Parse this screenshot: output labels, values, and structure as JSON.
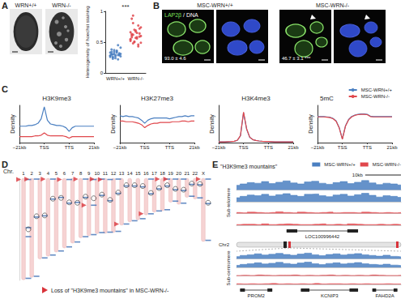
{
  "panel_labels": [
    "A",
    "B",
    "C",
    "D",
    "E"
  ],
  "panel_a": {
    "image_labels": [
      "WRN+/+",
      "WRN-/-"
    ]
  },
  "panel_b": {
    "groups": [
      "MSC-WRN+/+",
      "MSC-WRN-/-"
    ],
    "label_parts": [
      {
        "text": "LAP2β",
        "color": "#7be05a"
      },
      {
        "text": "/ DNA",
        "color": "#ffffff"
      }
    ],
    "values": [
      "93.0 ± 4.6",
      "46.7 ± 3.1 ***"
    ]
  },
  "panel_e": {
    "title": "\"H3K9me3 mountains\"",
    "chromosome": "Chr2"
  },
  "chart_data": [
    {
      "type": "scatter",
      "ylabel": "Heterogeneity of hoechst staining",
      "categories": [
        "WRN+/+",
        "WRN-/-"
      ],
      "values": [
        [
          0.28,
          0.31,
          0.25,
          0.34,
          0.29,
          0.36,
          0.22,
          0.3,
          0.27,
          0.33,
          0.38,
          0.26,
          0.31,
          0.24,
          0.35,
          0.29,
          0.32,
          0.41,
          0.28,
          0.3,
          0.23,
          0.37,
          0.27,
          0.33,
          0.45,
          0.29,
          0.31,
          0.26,
          0.34,
          0.3
        ],
        [
          0.52,
          0.61,
          0.48,
          0.7,
          0.57,
          0.65,
          0.43,
          0.59,
          0.74,
          0.55,
          0.63,
          0.81,
          0.5,
          0.67,
          0.58,
          0.46,
          0.72,
          0.6,
          0.54,
          0.88,
          0.62,
          0.51,
          0.69,
          0.56,
          0.77,
          0.64,
          0.49,
          0.66,
          0.58,
          0.93
        ]
      ],
      "colors": [
        "#4a7fc1",
        "#e0474c"
      ],
      "ylim": [
        0,
        1
      ],
      "yticks": [
        0,
        0.5,
        1
      ],
      "annotation": "***"
    },
    {
      "type": "line",
      "title": "H3K9me3",
      "ylabel": "Density",
      "x": [
        0,
        5,
        10,
        15,
        20,
        25,
        30,
        35,
        40,
        45,
        50,
        55,
        60,
        65,
        70,
        75,
        80,
        85,
        90,
        95,
        100,
        105,
        110,
        115,
        120
      ],
      "xlim": [
        0,
        120
      ],
      "xticks": [
        {
          "value": 0,
          "label": "−21kb"
        },
        {
          "value": 40,
          "label": "TSS"
        },
        {
          "value": 80,
          "label": "TTS"
        },
        {
          "value": 120,
          "label": "21kb"
        }
      ],
      "ylim": [
        0,
        0.5
      ],
      "tick_labels": "x",
      "series": [
        {
          "name": "MSC-WRN+/+",
          "color": "#4a7fc1",
          "values": [
            0.22,
            0.22,
            0.22,
            0.23,
            0.23,
            0.24,
            0.26,
            0.32,
            0.48,
            0.3,
            0.25,
            0.24,
            0.23,
            0.23,
            0.22,
            0.2,
            0.15,
            0.2,
            0.22,
            0.22,
            0.22,
            0.22,
            0.22,
            0.22,
            0.22
          ]
        },
        {
          "name": "MSC-WRN-/-",
          "color": "#e0474c",
          "values": [
            0.08,
            0.08,
            0.08,
            0.08,
            0.08,
            0.09,
            0.09,
            0.1,
            0.13,
            0.1,
            0.09,
            0.09,
            0.09,
            0.09,
            0.09,
            0.08,
            0.06,
            0.08,
            0.08,
            0.08,
            0.08,
            0.08,
            0.08,
            0.08,
            0.08
          ]
        }
      ]
    },
    {
      "type": "line",
      "title": "H3K27me3",
      "ylabel": "Density",
      "x": [
        0,
        5,
        10,
        15,
        20,
        25,
        30,
        35,
        40,
        45,
        50,
        55,
        60,
        65,
        70,
        75,
        80,
        85,
        90,
        95,
        100,
        105,
        110,
        115,
        120
      ],
      "xlim": [
        0,
        120
      ],
      "xticks": [
        {
          "value": 0,
          "label": "−21kb"
        },
        {
          "value": 40,
          "label": "TSS"
        },
        {
          "value": 80,
          "label": "TTS"
        },
        {
          "value": 120,
          "label": "21kb"
        }
      ],
      "ylim": [
        0,
        0.5
      ],
      "tick_labels": "x",
      "series": [
        {
          "name": "MSC-WRN+/+",
          "color": "#4a7fc1",
          "values": [
            0.36,
            0.35,
            0.36,
            0.35,
            0.35,
            0.34,
            0.33,
            0.3,
            0.26,
            0.3,
            0.32,
            0.33,
            0.33,
            0.33,
            0.33,
            0.33,
            0.32,
            0.33,
            0.34,
            0.35,
            0.35,
            0.36,
            0.35,
            0.36,
            0.36
          ]
        },
        {
          "name": "MSC-WRN-/-",
          "color": "#e0474c",
          "values": [
            0.29,
            0.29,
            0.28,
            0.28,
            0.28,
            0.27,
            0.26,
            0.24,
            0.2,
            0.23,
            0.25,
            0.26,
            0.26,
            0.27,
            0.27,
            0.27,
            0.27,
            0.28,
            0.28,
            0.28,
            0.29,
            0.29,
            0.28,
            0.29,
            0.29
          ]
        }
      ]
    },
    {
      "type": "line",
      "title": "H3K4me3",
      "ylabel": "Density",
      "x": [
        0,
        5,
        10,
        15,
        20,
        25,
        30,
        35,
        40,
        45,
        50,
        55,
        60,
        65,
        70,
        75,
        80,
        85,
        90,
        95,
        100,
        105,
        110,
        115,
        120
      ],
      "xlim": [
        0,
        120
      ],
      "xticks": [
        {
          "value": 0,
          "label": "−21kb"
        },
        {
          "value": 40,
          "label": "TSS"
        },
        {
          "value": 80,
          "label": "TTS"
        },
        {
          "value": 120,
          "label": "21kb"
        }
      ],
      "ylim": [
        0,
        2.5
      ],
      "tick_labels": "x",
      "series": [
        {
          "name": "MSC-WRN+/+",
          "color": "#4a7fc1",
          "values": [
            0.05,
            0.05,
            0.05,
            0.06,
            0.07,
            0.09,
            0.15,
            0.45,
            2.0,
            0.9,
            0.35,
            0.2,
            0.14,
            0.11,
            0.09,
            0.08,
            0.07,
            0.06,
            0.05,
            0.05,
            0.05,
            0.05,
            0.05,
            0.05,
            0.05
          ]
        },
        {
          "name": "MSC-WRN-/-",
          "color": "#e0474c",
          "values": [
            0.05,
            0.05,
            0.05,
            0.06,
            0.07,
            0.09,
            0.16,
            0.47,
            2.05,
            0.92,
            0.36,
            0.2,
            0.14,
            0.11,
            0.09,
            0.08,
            0.07,
            0.06,
            0.05,
            0.05,
            0.05,
            0.05,
            0.05,
            0.05,
            0.05
          ]
        }
      ]
    },
    {
      "type": "line",
      "title": "5mC",
      "ylabel": "Density",
      "x": [
        0,
        5,
        10,
        15,
        20,
        25,
        30,
        35,
        40,
        45,
        50,
        55,
        60,
        65,
        70,
        75,
        80,
        85,
        90,
        95,
        100,
        105,
        110,
        115,
        120
      ],
      "xlim": [
        0,
        120
      ],
      "xticks": [
        {
          "value": 0,
          "label": "−21kb"
        },
        {
          "value": 40,
          "label": "TSS"
        },
        {
          "value": 80,
          "label": "TTS"
        },
        {
          "value": 120,
          "label": "21kb"
        }
      ],
      "ylim": [
        0,
        1
      ],
      "tick_labels": "x",
      "legend": "upper right",
      "series": [
        {
          "name": "MSC-WRN+/+",
          "color": "#4a7fc1",
          "values": [
            0.7,
            0.7,
            0.7,
            0.69,
            0.68,
            0.65,
            0.58,
            0.4,
            0.1,
            0.45,
            0.62,
            0.7,
            0.74,
            0.76,
            0.77,
            0.77,
            0.76,
            0.71,
            0.7,
            0.7,
            0.7,
            0.7,
            0.7,
            0.7,
            0.7
          ]
        },
        {
          "name": "MSC-WRN-/-",
          "color": "#e0474c",
          "values": [
            0.69,
            0.69,
            0.69,
            0.68,
            0.67,
            0.64,
            0.57,
            0.39,
            0.09,
            0.44,
            0.61,
            0.69,
            0.73,
            0.75,
            0.76,
            0.76,
            0.75,
            0.7,
            0.69,
            0.69,
            0.69,
            0.69,
            0.69,
            0.69,
            0.69
          ]
        }
      ]
    },
    {
      "type": "bar",
      "title": "Chr.",
      "categories": [
        "1",
        "2",
        "3",
        "4",
        "5",
        "6",
        "7",
        "8",
        "9",
        "10",
        "11",
        "12",
        "13",
        "14",
        "15",
        "16",
        "17",
        "18",
        "19",
        "20",
        "21",
        "22",
        "X"
      ],
      "values": [
        249,
        243,
        198,
        191,
        181,
        171,
        159,
        146,
        141,
        136,
        135,
        133,
        115,
        107,
        102,
        90,
        83,
        80,
        59,
        64,
        47,
        51,
        155
      ],
      "color": "#f6d3d3",
      "ylim": [
        0,
        250
      ],
      "tick_labels": "x",
      "centromeres": [
        125,
        93,
        91,
        50,
        48,
        59,
        60,
        45,
        49,
        40,
        53,
        35,
        17,
        17,
        19,
        36,
        24,
        17,
        26,
        28,
        13,
        14,
        60
      ],
      "mountains": [
        [
          3,
          121,
          143,
          245
        ],
        [
          2,
          95,
          240
        ],
        [
          92,
          195
        ],
        [
          2,
          51,
          188
        ],
        [
          47,
          178
        ],
        [
          3,
          61,
          168
        ],
        [
          59,
          156
        ],
        [
          2,
          47,
          143
        ],
        [
          3,
          66,
          138
        ],
        [
          2,
          42,
          133
        ],
        [
          3,
          55,
          132
        ],
        [
          2,
          37,
          130
        ],
        [
          19,
          112
        ],
        [
          19,
          104
        ],
        [
          21,
          99
        ],
        [
          2,
          38,
          87
        ],
        [
          26,
          80
        ],
        [
          2,
          19,
          77
        ],
        [
          2,
          28,
          56
        ],
        [
          2,
          30,
          61
        ],
        [
          15,
          44
        ],
        [
          16,
          48
        ],
        [
          2,
          62,
          152
        ]
      ],
      "losses": [
        [
          3
        ],
        [
          2
        ],
        [],
        [
          2
        ],
        [],
        [
          3
        ],
        [],
        [
          2
        ],
        [
          66
        ],
        [
          2
        ],
        [
          3
        ],
        [],
        [
          112
        ],
        [],
        [],
        [
          87
        ],
        [],
        [
          2
        ],
        [
          2
        ],
        [],
        [],
        [],
        [
          2
        ]
      ],
      "annotation": "Loss of \"H3K9me3 mountains\" in MSC-WRN-/-"
    },
    {
      "type": "area",
      "title": "Sub-telomere",
      "x": [
        0,
        2,
        4,
        6,
        8,
        10,
        12,
        14,
        16,
        18,
        20,
        22,
        24,
        26,
        28,
        30,
        32,
        34,
        36,
        38,
        40,
        42,
        44,
        46
      ],
      "xlim": [
        0,
        46
      ],
      "ylim": [
        0,
        30
      ],
      "tick_labels": false,
      "legend": "upper right",
      "scale_bar": {
        "value": 10,
        "label": "10kb"
      },
      "genes": [
        {
          "name": "LOC100996442",
          "start": 14,
          "end": 34
        }
      ],
      "series": [
        {
          "name": "MSC-WRN+/+",
          "color": "#4a7fc1",
          "values": [
            14,
            18,
            22,
            20,
            25,
            19,
            23,
            27,
            21,
            18,
            24,
            26,
            20,
            17,
            22,
            25,
            19,
            23,
            28,
            21,
            16,
            20,
            18,
            15
          ]
        },
        {
          "name": "MSC-WRN+/+",
          "color": "#4a7fc1",
          "values": [
            12,
            16,
            20,
            18,
            22,
            17,
            21,
            24,
            19,
            16,
            22,
            23,
            18,
            15,
            20,
            22,
            17,
            21,
            25,
            19,
            14,
            18,
            16,
            13
          ]
        },
        {
          "name": "MSC-WRN-/-",
          "color": "#e0474c",
          "values": [
            3,
            2,
            4,
            3,
            2,
            3,
            5,
            3,
            2,
            4,
            3,
            2,
            3,
            4,
            2,
            3,
            3,
            2,
            4,
            3,
            2,
            3,
            2,
            3
          ]
        },
        {
          "name": "MSC-WRN-/-",
          "color": "#e0474c",
          "values": [
            2,
            3,
            3,
            2,
            4,
            2,
            3,
            4,
            3,
            2,
            2,
            3,
            4,
            2,
            3,
            2,
            4,
            3,
            2,
            2,
            3,
            2,
            3,
            2
          ]
        }
      ]
    },
    {
      "type": "area",
      "title": "Sub-centromere",
      "x": [
        0,
        2,
        4,
        6,
        8,
        10,
        12,
        14,
        16,
        18,
        20,
        22,
        24,
        26,
        28,
        30,
        32,
        34,
        36,
        38,
        40,
        42,
        44,
        46
      ],
      "xlim": [
        0,
        46
      ],
      "ylim": [
        0,
        30
      ],
      "tick_labels": false,
      "genes": [
        {
          "name": "PROM2",
          "start": 1,
          "end": 10
        },
        {
          "name": "KCNIP3",
          "start": 18,
          "end": 34
        },
        {
          "name": "FAHD2A",
          "start": 38,
          "end": 45
        }
      ],
      "series": [
        {
          "name": "MSC-WRN+/+",
          "color": "#4a7fc1",
          "values": [
            10,
            15,
            18,
            22,
            17,
            20,
            24,
            19,
            16,
            21,
            25,
            18,
            14,
            19,
            22,
            17,
            20,
            23,
            18,
            15,
            12,
            16,
            11,
            9
          ]
        },
        {
          "name": "MSC-WRN+/+",
          "color": "#4a7fc1",
          "values": [
            9,
            13,
            16,
            20,
            15,
            18,
            22,
            17,
            14,
            19,
            23,
            16,
            12,
            17,
            20,
            15,
            18,
            21,
            16,
            13,
            11,
            14,
            10,
            8
          ]
        },
        {
          "name": "MSC-WRN-/-",
          "color": "#e0474c",
          "values": [
            2,
            3,
            2,
            4,
            3,
            2,
            3,
            3,
            4,
            2,
            3,
            2,
            3,
            4,
            2,
            3,
            2,
            3,
            2,
            4,
            3,
            2,
            2,
            3
          ]
        },
        {
          "name": "MSC-WRN-/-",
          "color": "#e0474c",
          "values": [
            3,
            2,
            3,
            2,
            3,
            4,
            2,
            3,
            2,
            3,
            2,
            4,
            2,
            3,
            3,
            2,
            3,
            2,
            3,
            2,
            2,
            3,
            2,
            2
          ]
        }
      ]
    }
  ]
}
